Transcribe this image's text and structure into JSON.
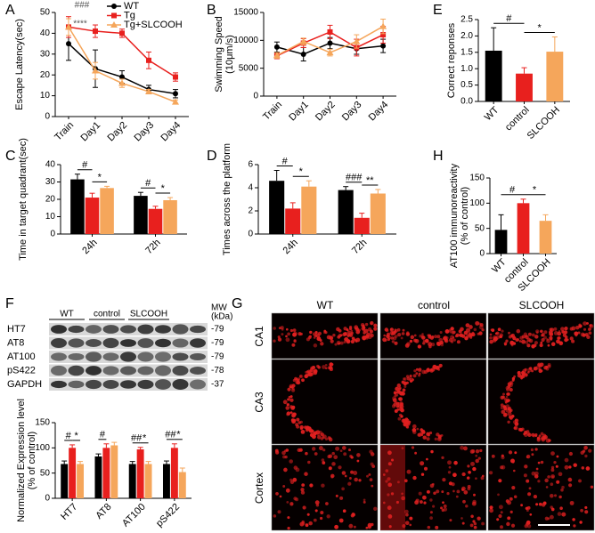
{
  "chart_data": [
    {
      "type": "line",
      "label": "A",
      "ylabel": [
        "Escape Latency(sec)"
      ],
      "categories": [
        "Train",
        "Day1",
        "Day2",
        "Day3",
        "Day4"
      ],
      "ylim": [
        0,
        50
      ],
      "yticks": [
        0,
        10,
        20,
        30,
        40,
        50
      ],
      "series": [
        {
          "name": "WT",
          "color": "#000000",
          "marker": "circle",
          "values": [
            35,
            23,
            19,
            13,
            11
          ],
          "errors": [
            8,
            9,
            3,
            2,
            2
          ]
        },
        {
          "name": "Tg",
          "color": "#e8201e",
          "marker": "square",
          "values": [
            43,
            41,
            40,
            27,
            19
          ],
          "errors": [
            5,
            3,
            2,
            4,
            2
          ]
        },
        {
          "name": "Tg+SLCOOH",
          "color": "#f5a65b",
          "marker": "triangle",
          "values": [
            43,
            22,
            16,
            12,
            7
          ],
          "errors": [
            4,
            4,
            2,
            1,
            1
          ]
        }
      ],
      "annotations": [
        "###",
        "****"
      ]
    },
    {
      "type": "line",
      "label": "B",
      "ylabel": [
        "Swimming Speed",
        "(10μm/s)"
      ],
      "categories": [
        "Train",
        "Day1",
        "Day2",
        "Day3",
        "Day4"
      ],
      "ylim": [
        0,
        15000
      ],
      "yticks": [
        0,
        5000,
        10000,
        15000
      ],
      "series": [
        {
          "color": "#000000",
          "marker": "circle",
          "values": [
            8800,
            7500,
            9500,
            8500,
            9000
          ],
          "errors": [
            900,
            1200,
            1000,
            1000,
            1200
          ]
        },
        {
          "color": "#e8201e",
          "marker": "square",
          "values": [
            7200,
            9500,
            11500,
            8700,
            11000
          ],
          "errors": [
            500,
            800,
            1200,
            1500,
            1500
          ]
        },
        {
          "color": "#f5a65b",
          "marker": "triangle",
          "values": [
            7300,
            9800,
            7800,
            9800,
            12500
          ],
          "errors": [
            500,
            600,
            600,
            1200,
            1300
          ]
        }
      ]
    },
    {
      "type": "bar",
      "label": "E",
      "ylabel": [
        "Correct reponses"
      ],
      "categories": [
        "WT",
        "control",
        "SLCOOH"
      ],
      "values": [
        1.55,
        0.85,
        1.52
      ],
      "errors": [
        0.7,
        0.18,
        0.45
      ],
      "colors": [
        "#000000",
        "#e8201e",
        "#f5a65b"
      ],
      "ylim": [
        0,
        2.5
      ],
      "yticks": [
        {
          "value": 0,
          "label": "0.0"
        },
        0.5,
        {
          "value": 1,
          "label": "1.0"
        },
        1.5,
        {
          "value": 2,
          "label": "2.0"
        },
        2.5
      ],
      "annotations": [
        "#",
        "*"
      ]
    },
    {
      "type": "grouped_bar",
      "label": "C",
      "ylabel": [
        "Time in target quadrant(sec)"
      ],
      "categories": [
        "24h",
        "72h"
      ],
      "ylim": [
        0,
        40
      ],
      "yticks": [
        0,
        10,
        20,
        30,
        40
      ],
      "series": [
        {
          "color": "#000000",
          "values": [
            31.5,
            22
          ],
          "errors": [
            3,
            2
          ]
        },
        {
          "color": "#e8201e",
          "values": [
            21,
            14.5
          ],
          "errors": [
            2.5,
            1.5
          ]
        },
        {
          "color": "#f5a65b",
          "values": [
            26.5,
            19.5
          ],
          "errors": [
            1,
            1.5
          ]
        }
      ],
      "annotations": [
        "#",
        "*",
        "#",
        "*"
      ]
    },
    {
      "type": "grouped_bar",
      "label": "D",
      "ylabel": [
        "Times across the platform"
      ],
      "categories": [
        "24h",
        "72h"
      ],
      "ylim": [
        0,
        6
      ],
      "yticks": [
        0,
        2,
        4,
        6
      ],
      "series": [
        {
          "color": "#000000",
          "values": [
            4.6,
            3.8
          ],
          "errors": [
            0.9,
            0.3
          ]
        },
        {
          "color": "#e8201e",
          "values": [
            2.2,
            1.4
          ],
          "errors": [
            0.5,
            0.4
          ]
        },
        {
          "color": "#f5a65b",
          "values": [
            4.1,
            3.5
          ],
          "errors": [
            0.5,
            0.35
          ]
        }
      ],
      "annotations": [
        "#",
        "*",
        "###",
        "**"
      ]
    },
    {
      "type": "bar",
      "label": "H",
      "ylabel": [
        "AT100 immunoreactivity",
        "(% of control)"
      ],
      "categories": [
        "WT",
        "control",
        "SLCOOH"
      ],
      "values": [
        47,
        100,
        65
      ],
      "errors": [
        30,
        8,
        12
      ],
      "colors": [
        "#000000",
        "#e8201e",
        "#f5a65b"
      ],
      "ylim": [
        0,
        150
      ],
      "yticks": [
        0,
        50,
        100,
        150
      ],
      "annotations": [
        "#",
        "*"
      ]
    },
    {
      "type": "grouped_bar",
      "label": "F",
      "ylabel": [
        "Normalized Expression level",
        "(% of control)"
      ],
      "categories": [
        "HT7",
        "AT8",
        "AT100",
        "pS422"
      ],
      "ylim": [
        0,
        150
      ],
      "yticks": [
        0,
        50,
        100,
        150
      ],
      "series": [
        {
          "color": "#000000",
          "values": [
            68,
            83,
            68,
            68
          ],
          "errors": [
            6,
            5,
            5,
            6
          ]
        },
        {
          "color": "#e8201e",
          "values": [
            100,
            100,
            97,
            100
          ],
          "errors": [
            6,
            8,
            4,
            8
          ]
        },
        {
          "color": "#f5a65b",
          "values": [
            68,
            105,
            68,
            52
          ],
          "errors": [
            5,
            6,
            5,
            8
          ]
        }
      ],
      "annotations": [
        "#",
        "*",
        "#",
        "##",
        "*",
        "##",
        "*"
      ],
      "blot": {
        "groups": [
          "WT",
          "control",
          "SLCOOH"
        ],
        "mw_label": [
          "MW",
          "(kDa)"
        ],
        "rows": [
          {
            "name": "HT7",
            "mw": "-79"
          },
          {
            "name": "AT8",
            "mw": "-79"
          },
          {
            "name": "AT100",
            "mw": "-79"
          },
          {
            "name": "pS422",
            "mw": "-78"
          },
          {
            "name": "GAPDH",
            "mw": "-37"
          }
        ]
      }
    }
  ],
  "image_panel": {
    "label": "G",
    "columns": [
      "WT",
      "control",
      "SLCOOH"
    ],
    "rows": [
      "CA1",
      "CA3",
      "Cortex"
    ]
  }
}
